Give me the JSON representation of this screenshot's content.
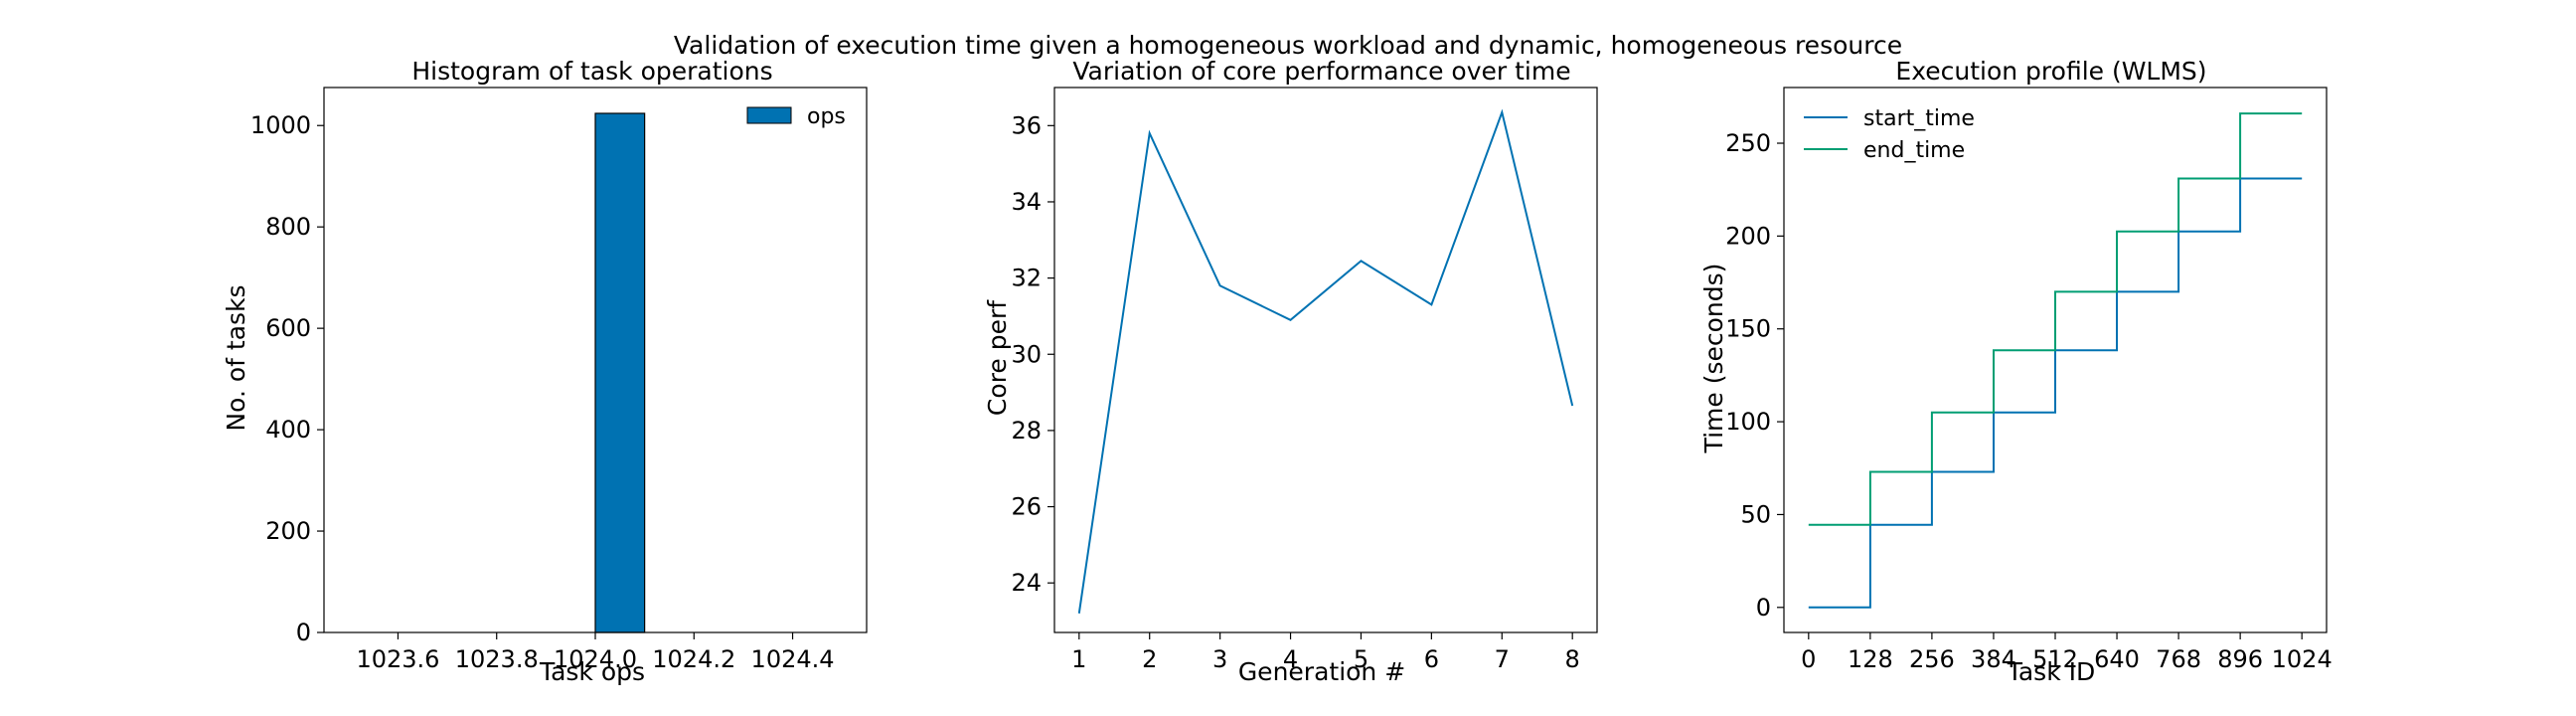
{
  "figure": {
    "suptitle": "Validation of execution time given a homogeneous workload and dynamic, homogeneous resource"
  },
  "colors": {
    "blue": "#0072b2",
    "green": "#009e73"
  },
  "chart_data": [
    {
      "type": "bar",
      "title": "Histogram of task operations",
      "xlabel": "Task ops",
      "ylabel": "No. of tasks",
      "xlim": [
        1023.45,
        1024.55
      ],
      "ylim": [
        0,
        1075
      ],
      "xticks": [
        1023.6,
        1023.8,
        1024.0,
        1024.2,
        1024.4
      ],
      "xticklabels": [
        "1023.6",
        "1023.8",
        "1024.0",
        "1024.2",
        "1024.4"
      ],
      "yticks": [
        0,
        200,
        400,
        600,
        800,
        1000
      ],
      "yticklabels": [
        "0",
        "200",
        "400",
        "600",
        "800",
        "1000"
      ],
      "bars": [
        {
          "x0": 1024.0,
          "x1": 1024.1,
          "value": 1024
        }
      ],
      "series": [
        {
          "name": "ops",
          "color": "#0072b2"
        }
      ],
      "legend": "top-right",
      "grid": false
    },
    {
      "type": "line",
      "title": "Variation of core performance over time",
      "xlabel": "Generation #",
      "ylabel": "Core perf",
      "xlim": [
        0.65,
        8.35
      ],
      "ylim": [
        22.7,
        37.0
      ],
      "xticks": [
        1,
        2,
        3,
        4,
        5,
        6,
        7,
        8
      ],
      "xticklabels": [
        "1",
        "2",
        "3",
        "4",
        "5",
        "6",
        "7",
        "8"
      ],
      "yticks": [
        24,
        26,
        28,
        30,
        32,
        34,
        36
      ],
      "yticklabels": [
        "24",
        "26",
        "28",
        "30",
        "32",
        "34",
        "36"
      ],
      "x": [
        1,
        2,
        3,
        4,
        5,
        6,
        7,
        8
      ],
      "series": [
        {
          "values": [
            23.2,
            35.8,
            31.8,
            30.9,
            32.45,
            31.3,
            36.35,
            28.65
          ],
          "color": "#0072b2"
        }
      ],
      "grid": false
    },
    {
      "type": "line",
      "title": "Execution profile (WLMS)",
      "xlabel": "Task ID",
      "ylabel": "Time (seconds)",
      "xlim": [
        -51.2,
        1075.2
      ],
      "ylim": [
        -13.5,
        280
      ],
      "xticks": [
        0,
        128,
        256,
        384,
        512,
        640,
        768,
        896,
        1024
      ],
      "xticklabels": [
        "0",
        "128",
        "256",
        "384",
        "512",
        "640",
        "768",
        "896",
        "1024"
      ],
      "yticks": [
        0,
        50,
        100,
        150,
        200,
        250
      ],
      "yticklabels": [
        "0",
        "50",
        "100",
        "150",
        "200",
        "250"
      ],
      "step_edges": [
        0,
        128,
        256,
        384,
        512,
        640,
        768,
        896,
        1024
      ],
      "series": [
        {
          "name": "start_time",
          "color": "#0072b2",
          "values": [
            0,
            44.5,
            73,
            105,
            138.5,
            170,
            202.5,
            231
          ]
        },
        {
          "name": "end_time",
          "color": "#009e73",
          "values": [
            44.5,
            73,
            105,
            138.5,
            170,
            202.5,
            231,
            266
          ]
        }
      ],
      "legend": "top-left",
      "grid": false
    }
  ]
}
